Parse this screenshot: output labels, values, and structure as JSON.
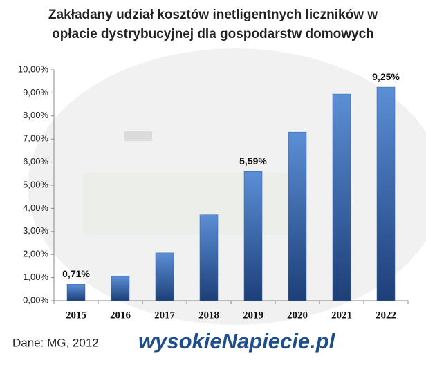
{
  "chart_data": {
    "type": "bar",
    "title": [
      "Zakładany udział kosztów inetligentnych liczników w",
      "opłacie dystrybucyjnej dla gospodarstw domowych"
    ],
    "categories": [
      "2015",
      "2016",
      "2017",
      "2018",
      "2019",
      "2020",
      "2021",
      "2022"
    ],
    "values": [
      0.71,
      1.05,
      2.07,
      3.72,
      5.59,
      7.3,
      8.95,
      9.25
    ],
    "value_labels": [
      "0,71%",
      null,
      null,
      null,
      "5,59%",
      null,
      null,
      "9,25%"
    ],
    "color": "#2f63ad",
    "ylim": [
      0,
      10
    ],
    "yticks": [
      {
        "value": 0,
        "label": "0,00%"
      },
      {
        "value": 1,
        "label": "1,00%"
      },
      {
        "value": 2,
        "label": "2,00%"
      },
      {
        "value": 3,
        "label": "3,00%"
      },
      {
        "value": 4,
        "label": "4,00%"
      },
      {
        "value": 5,
        "label": "5,00%"
      },
      {
        "value": 6,
        "label": "6,00%"
      },
      {
        "value": 7,
        "label": "7,00%"
      },
      {
        "value": 8,
        "label": "8,00%"
      },
      {
        "value": 9,
        "label": "9,00%"
      },
      {
        "value": 10,
        "label": "10,00%"
      }
    ],
    "source": "Dane: MG, 2012",
    "logo": "wysokieNapiecie.pl"
  }
}
